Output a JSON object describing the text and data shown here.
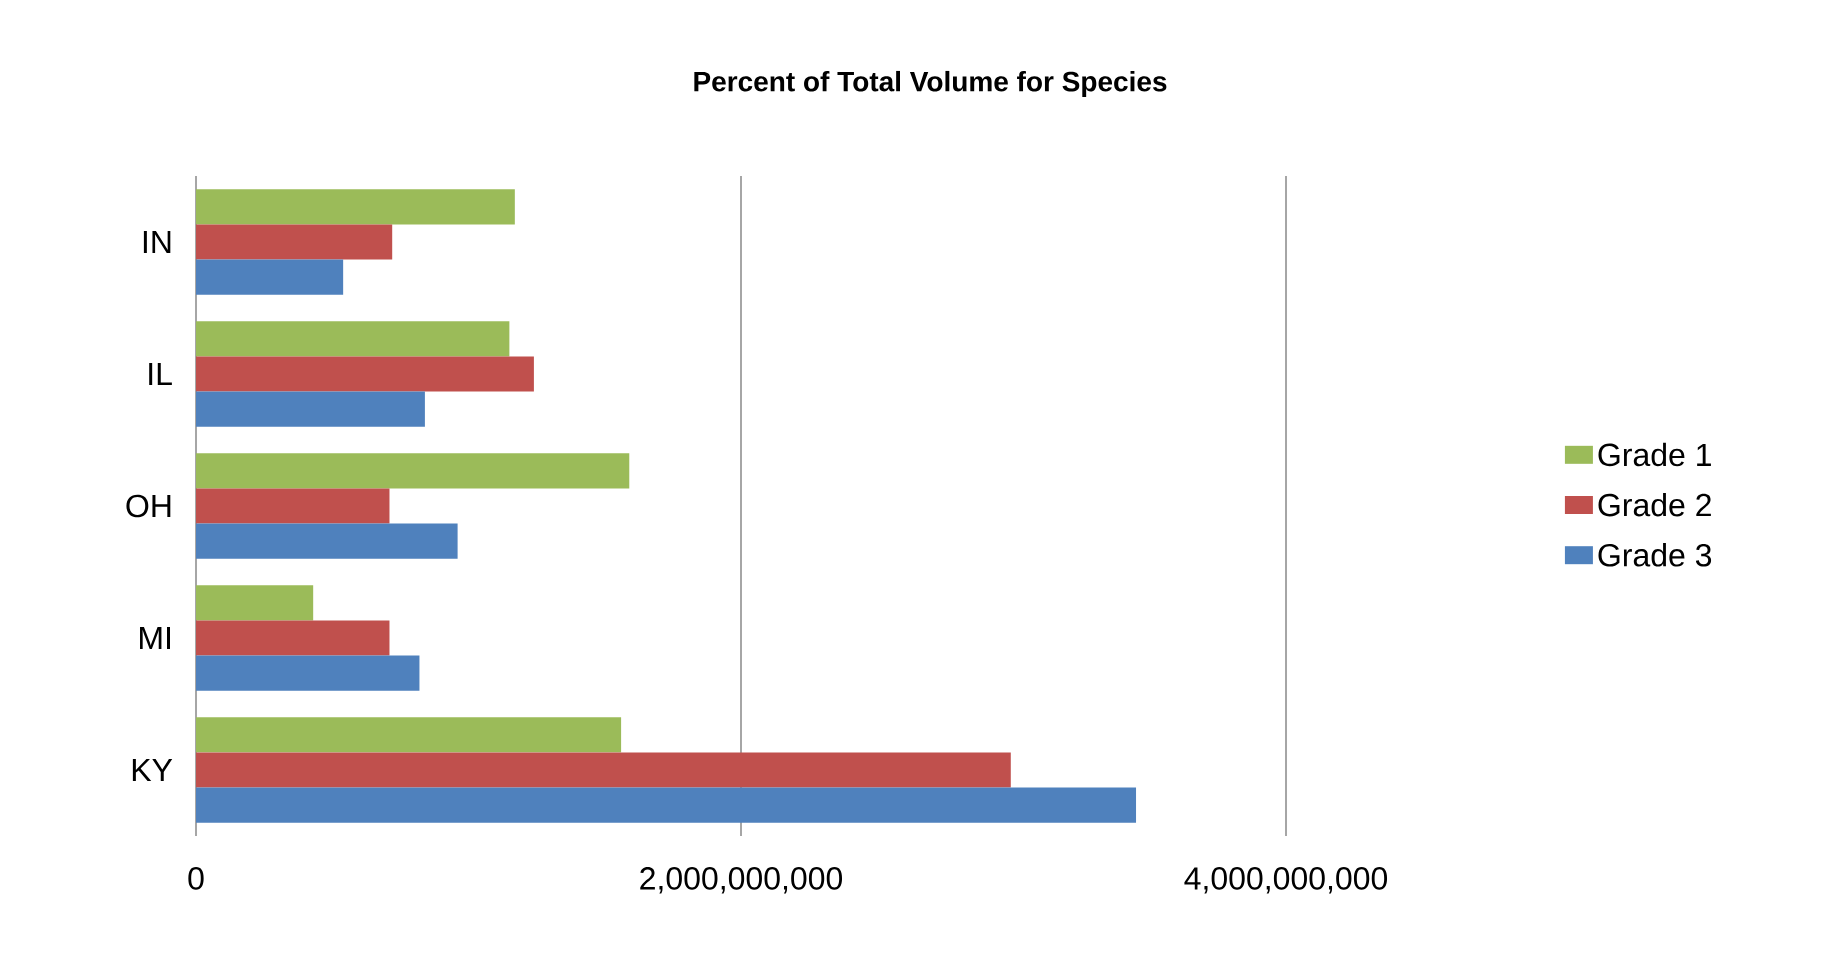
{
  "chart_data": {
    "type": "bar",
    "orientation": "horizontal",
    "title": "Percent of Total Volume for Species",
    "categories": [
      "IN",
      "IL",
      "OH",
      "MI",
      "KY"
    ],
    "series": [
      {
        "name": "Grade 1",
        "color": "#9bbb59",
        "values": [
          1170000000,
          1150000000,
          1590000000,
          430000000,
          1560000000
        ]
      },
      {
        "name": "Grade 2",
        "color": "#c0504d",
        "values": [
          720000000,
          1240000000,
          710000000,
          710000000,
          2990000000
        ]
      },
      {
        "name": "Grade 3",
        "color": "#4f81bd",
        "values": [
          540000000,
          840000000,
          960000000,
          820000000,
          3450000000
        ]
      }
    ],
    "xlim": [
      0,
      4000000000
    ],
    "xticks": [
      {
        "value": 0,
        "label": "0"
      },
      {
        "value": 2000000000,
        "label": "2,000,000,000"
      },
      {
        "value": 4000000000,
        "label": "4,000,000,000"
      }
    ],
    "grid": "x",
    "legend": "right"
  }
}
